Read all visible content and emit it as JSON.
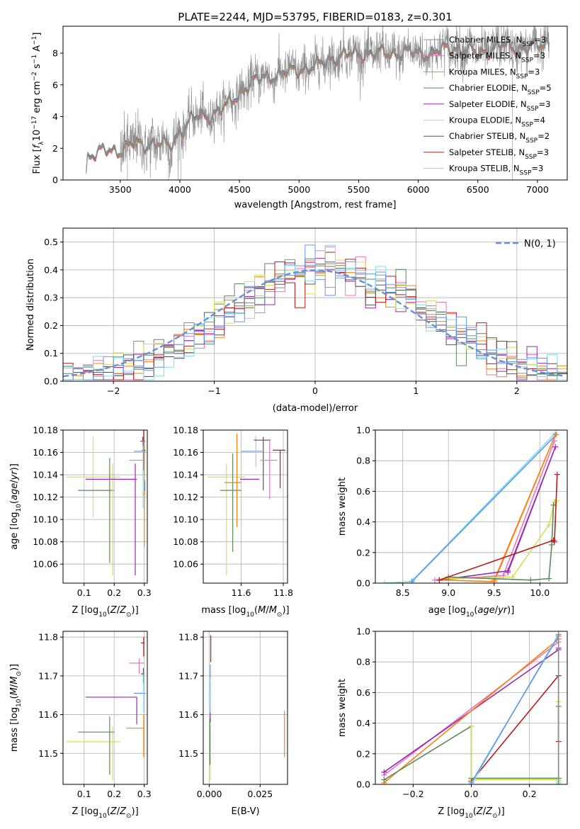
{
  "figure_title": "PLATE=2244, MJD=53795, FIBERID=0183, z=0.301",
  "colors": {
    "chabrier_miles": "#8c8c8c",
    "salpeter_miles": "#e377c2",
    "kroupa_miles": "#ff7f0e",
    "chabrier_elodie": "#5a8a5a",
    "salpeter_elodie": "#9c27b0",
    "kroupa_elodie": "#d4e157",
    "chabrier_stelib": "#555555",
    "salpeter_stelib": "#b71c1c",
    "kroupa_stelib": "#80deea",
    "extra_blue": "#6495ed",
    "normal_curve": "#6b8fd6"
  },
  "chart_data": [
    {
      "id": "spectrum",
      "type": "line",
      "title": "PLATE=2244, MJD=53795, FIBERID=0183, z=0.301",
      "xlabel": "wavelength [Angstrom, rest frame]",
      "ylabel": "Flux [f_λ 10^-17 erg cm^-2 s^-1 A^-1]",
      "xlim": [
        3020,
        7250
      ],
      "ylim": [
        0,
        9.7
      ],
      "xticks": [
        3500,
        4000,
        4500,
        5000,
        5500,
        6000,
        6500,
        7000
      ],
      "yticks": [
        0,
        2,
        4,
        6,
        8
      ],
      "grid": false,
      "legend_position": "top-right",
      "legend": [
        {
          "label": "Chabrier MILES, N",
          "sub": "SSP",
          "suffix": "=3",
          "color": "#8c8c8c"
        },
        {
          "label": "Salpeter MILES, N",
          "sub": "SSP",
          "suffix": "=3",
          "color": "#e377c2"
        },
        {
          "label": "Kroupa MILES, N",
          "sub": "SSP",
          "suffix": "=3",
          "color": "#ff7f0e"
        },
        {
          "label": "Chabrier ELODIE, N",
          "sub": "SSP",
          "suffix": "=5",
          "color": "#5a8a5a"
        },
        {
          "label": "Salpeter ELODIE, N",
          "sub": "SSP",
          "suffix": "=3",
          "color": "#9c27b0"
        },
        {
          "label": "Kroupa ELODIE, N",
          "sub": "SSP",
          "suffix": "=4",
          "color": "#d4e157"
        },
        {
          "label": "Chabrier STELIB, N",
          "sub": "SSP",
          "suffix": "=2",
          "color": "#555555"
        },
        {
          "label": "Salpeter STELIB, N",
          "sub": "SSP",
          "suffix": "=3",
          "color": "#b71c1c"
        },
        {
          "label": "Kroupa STELIB, N",
          "sub": "SSP",
          "suffix": "=3",
          "color": "#80deea"
        }
      ],
      "continuum_knots": [
        [
          3210,
          0
        ],
        [
          3225,
          1.5
        ],
        [
          3300,
          1.75
        ],
        [
          3400,
          1.85
        ],
        [
          3500,
          1.9
        ],
        [
          3600,
          2.3
        ],
        [
          3700,
          2.2
        ],
        [
          3800,
          2.4
        ],
        [
          3920,
          2.1
        ],
        [
          4000,
          3.1
        ],
        [
          4100,
          3.9
        ],
        [
          4250,
          4.1
        ],
        [
          4400,
          4.7
        ],
        [
          4550,
          5.9
        ],
        [
          4700,
          6.5
        ],
        [
          4850,
          6.7
        ],
        [
          5000,
          7.0
        ],
        [
          5150,
          7.2
        ],
        [
          5300,
          7.8
        ],
        [
          5500,
          8.0
        ],
        [
          5700,
          8.0
        ],
        [
          5900,
          8.05
        ],
        [
          6100,
          8.0
        ],
        [
          6300,
          8.4
        ],
        [
          6500,
          8.0
        ],
        [
          6700,
          8.5
        ],
        [
          6900,
          8.3
        ],
        [
          7050,
          8.6
        ],
        [
          7100,
          8.8
        ]
      ]
    },
    {
      "id": "residuals",
      "type": "histogram",
      "xlabel": "(data-model)/error",
      "ylabel": "Normed distribution",
      "xlim": [
        -2.5,
        2.5
      ],
      "ylim": [
        0,
        0.55
      ],
      "xticks": [
        -2,
        -1,
        0,
        1,
        2
      ],
      "yticks": [
        0.0,
        0.1,
        0.2,
        0.3,
        0.4,
        0.5
      ],
      "grid": true,
      "legend_position": "top-right",
      "normal_label": "N(0, 1)",
      "bin_width": 0.1
    },
    {
      "id": "age_vs_Z",
      "type": "errorbar",
      "xlabel": "Z [log10(Z/Z_sun)]",
      "ylabel": "age  [log10(age/yr)]",
      "xlim": [
        0.03,
        0.31
      ],
      "ylim": [
        10.043,
        10.18
      ],
      "xticks": [
        0.1,
        0.2,
        0.3
      ],
      "yticks": [
        10.06,
        10.08,
        10.1,
        10.12,
        10.14,
        10.16,
        10.18
      ],
      "grid": true,
      "points": [
        {
          "x": 0.13,
          "xerr": 0.09,
          "y": 10.138,
          "yerr": 0.036,
          "color": "#d4e157"
        },
        {
          "x": 0.14,
          "xerr": 0.06,
          "y": 10.126,
          "yerr": 0.0,
          "color": "#5a8a5a"
        },
        {
          "x": 0.185,
          "xerr": 0.0,
          "y": 10.108,
          "yerr": 0.047,
          "color": "#5a8a5a"
        },
        {
          "x": 0.195,
          "xerr": 0.0,
          "y": 10.1,
          "yerr": 0.05,
          "color": "#d4e157"
        },
        {
          "x": 0.19,
          "xerr": 0.085,
          "y": 10.136,
          "yerr": 0.0,
          "color": "#9c27b0"
        },
        {
          "x": 0.27,
          "xerr": 0.0,
          "y": 10.1,
          "yerr": 0.05,
          "color": "#9c27b0"
        },
        {
          "x": 0.275,
          "xerr": 0.025,
          "y": 10.153,
          "yerr": 0.0,
          "color": "#e377c2"
        },
        {
          "x": 0.285,
          "xerr": 0.02,
          "y": 10.161,
          "yerr": 0.0,
          "color": "#6495ed"
        },
        {
          "x": 0.295,
          "xerr": 0.008,
          "y": 10.17,
          "yerr": 0.004,
          "color": "#555555"
        },
        {
          "x": 0.298,
          "xerr": 0.006,
          "y": 10.162,
          "yerr": 0.018,
          "color": "#b71c1c"
        },
        {
          "x": 0.296,
          "xerr": 0.004,
          "y": 10.14,
          "yerr": 0.03,
          "color": "#80deea"
        },
        {
          "x": 0.3,
          "xerr": 0.004,
          "y": 10.123,
          "yerr": 0.048,
          "color": "#ff7f0e"
        },
        {
          "x": 0.302,
          "xerr": 0.0,
          "y": 10.13,
          "yerr": 0.005,
          "color": "#8c8c8c"
        }
      ]
    },
    {
      "id": "age_vs_mass",
      "type": "errorbar",
      "xlabel": "mass [log10(M/M_sun)]",
      "ylabel": "",
      "xlim": [
        11.42,
        11.82
      ],
      "ylim": [
        10.043,
        10.18
      ],
      "xticks": [
        11.6,
        11.8
      ],
      "yticks": [
        10.06,
        10.08,
        10.1,
        10.12,
        10.14,
        10.16,
        10.18
      ],
      "grid": true,
      "points": [
        {
          "x": 11.53,
          "xerr": 0.09,
          "y": 10.138,
          "yerr": 0.0,
          "color": "#d4e157"
        },
        {
          "x": 11.53,
          "xerr": 0.0,
          "y": 10.1,
          "yerr": 0.05,
          "color": "#d4e157"
        },
        {
          "x": 11.55,
          "xerr": 0.05,
          "y": 10.126,
          "yerr": 0.0,
          "color": "#5a8a5a"
        },
        {
          "x": 11.56,
          "xerr": 0.0,
          "y": 10.115,
          "yerr": 0.044,
          "color": "#5a8a5a"
        },
        {
          "x": 11.56,
          "xerr": 0.04,
          "y": 10.133,
          "yerr": 0.0,
          "color": "#ff7f0e"
        },
        {
          "x": 11.58,
          "xerr": 0.0,
          "y": 10.135,
          "yerr": 0.042,
          "color": "#ff7f0e"
        },
        {
          "x": 11.64,
          "xerr": 0.045,
          "y": 10.136,
          "yerr": 0.0,
          "color": "#9c27b0"
        },
        {
          "x": 11.65,
          "xerr": 0.05,
          "y": 10.161,
          "yerr": 0.0,
          "color": "#6495ed"
        },
        {
          "x": 11.67,
          "xerr": 0.0,
          "y": 10.161,
          "yerr": 0.014,
          "color": "#80deea"
        },
        {
          "x": 11.7,
          "xerr": 0.04,
          "y": 10.171,
          "yerr": 0.0,
          "color": "#555555"
        },
        {
          "x": 11.705,
          "xerr": 0.0,
          "y": 10.15,
          "yerr": 0.024,
          "color": "#555555"
        },
        {
          "x": 11.73,
          "xerr": 0.04,
          "y": 10.153,
          "yerr": 0.0,
          "color": "#e377c2"
        },
        {
          "x": 11.735,
          "xerr": 0.0,
          "y": 10.145,
          "yerr": 0.027,
          "color": "#e377c2"
        },
        {
          "x": 11.78,
          "xerr": 0.03,
          "y": 10.162,
          "yerr": 0.0,
          "color": "#b71c1c"
        },
        {
          "x": 11.785,
          "xerr": 0.0,
          "y": 10.145,
          "yerr": 0.017,
          "color": "#b71c1c"
        }
      ]
    },
    {
      "id": "mass_weight_vs_age",
      "type": "line",
      "xlabel": "age  [log10(age/yr)]",
      "ylabel": "mass weight",
      "xlim": [
        8.2,
        10.3
      ],
      "ylim": [
        0,
        1.0
      ],
      "xticks": [
        8.5,
        9.0,
        9.5,
        10.0
      ],
      "yticks": [
        0.0,
        0.2,
        0.4,
        0.6,
        0.8,
        1.0
      ],
      "grid": true,
      "series": [
        {
          "color": "#80deea",
          "x": [
            8.3,
            8.6,
            10.17,
            8.61
          ],
          "y": [
            0.0,
            0.01,
            0.98,
            0.02
          ]
        },
        {
          "color": "#6495ed",
          "x": [
            8.6,
            10.18
          ],
          "y": [
            0.01,
            0.97
          ]
        },
        {
          "color": "#ff7f0e",
          "x": [
            8.9,
            9.5,
            10.17,
            9.5
          ],
          "y": [
            0.02,
            0.01,
            0.97,
            0.02
          ]
        },
        {
          "color": "#e377c2",
          "x": [
            8.85,
            9.6,
            10.16,
            9.6
          ],
          "y": [
            0.02,
            0.05,
            0.93,
            0.05
          ]
        },
        {
          "color": "#9c27b0",
          "x": [
            8.9,
            9.65,
            10.17,
            9.65
          ],
          "y": [
            0.02,
            0.08,
            0.89,
            0.07
          ]
        },
        {
          "color": "#d4e157",
          "x": [
            8.95,
            9.7,
            10.1,
            10.16,
            10.17,
            10.18
          ],
          "y": [
            0.03,
            0.04,
            0.38,
            0.53,
            0.53,
            0.54
          ]
        },
        {
          "color": "#5a8a5a",
          "x": [
            9.0,
            9.9,
            10.1,
            10.13,
            10.15
          ],
          "y": [
            0.04,
            0.02,
            0.03,
            0.25,
            0.51
          ]
        },
        {
          "color": "#b71c1c",
          "x": [
            8.9,
            10.15,
            10.16,
            10.19
          ],
          "y": [
            0.02,
            0.28,
            0.27,
            0.71
          ]
        }
      ]
    },
    {
      "id": "mass_vs_Z",
      "type": "errorbar",
      "xlabel": "Z [log10(Z/Z_sun)]",
      "ylabel": "mass [log10(M/M_sun)]",
      "xlim": [
        0.03,
        0.31
      ],
      "ylim": [
        11.42,
        11.815
      ],
      "xticks": [
        0.1,
        0.2,
        0.3
      ],
      "yticks": [
        11.5,
        11.6,
        11.7,
        11.8
      ],
      "grid": true,
      "points": [
        {
          "x": 0.13,
          "xerr": 0.09,
          "y": 11.53,
          "yerr": 0.0,
          "color": "#d4e157"
        },
        {
          "x": 0.195,
          "xerr": 0.0,
          "y": 11.5,
          "yerr": 0.07,
          "color": "#d4e157"
        },
        {
          "x": 0.14,
          "xerr": 0.06,
          "y": 11.555,
          "yerr": 0.0,
          "color": "#5a8a5a"
        },
        {
          "x": 0.185,
          "xerr": 0.0,
          "y": 11.52,
          "yerr": 0.075,
          "color": "#5a8a5a"
        },
        {
          "x": 0.19,
          "xerr": 0.085,
          "y": 11.645,
          "yerr": 0.0,
          "color": "#9c27b0"
        },
        {
          "x": 0.275,
          "xerr": 0.0,
          "y": 11.61,
          "yerr": 0.035,
          "color": "#9c27b0"
        },
        {
          "x": 0.27,
          "xerr": 0.03,
          "y": 11.565,
          "yerr": 0.0,
          "color": "#ff7f0e"
        },
        {
          "x": 0.298,
          "xerr": 0.0,
          "y": 11.545,
          "yerr": 0.055,
          "color": "#ff7f0e"
        },
        {
          "x": 0.275,
          "xerr": 0.025,
          "y": 11.733,
          "yerr": 0.0,
          "color": "#e377c2"
        },
        {
          "x": 0.283,
          "xerr": 0.0,
          "y": 11.725,
          "yerr": 0.02,
          "color": "#e377c2"
        },
        {
          "x": 0.285,
          "xerr": 0.02,
          "y": 11.655,
          "yerr": 0.0,
          "color": "#6495ed"
        },
        {
          "x": 0.295,
          "xerr": 0.006,
          "y": 11.705,
          "yerr": 0.0,
          "color": "#555555"
        },
        {
          "x": 0.297,
          "xerr": 0.0,
          "y": 11.7,
          "yerr": 0.02,
          "color": "#555555"
        },
        {
          "x": 0.295,
          "xerr": 0.006,
          "y": 11.785,
          "yerr": 0.0,
          "color": "#b71c1c"
        },
        {
          "x": 0.298,
          "xerr": 0.0,
          "y": 11.775,
          "yerr": 0.025,
          "color": "#b71c1c"
        },
        {
          "x": 0.298,
          "xerr": 0.0,
          "y": 11.655,
          "yerr": 0.05,
          "color": "#80deea"
        }
      ]
    },
    {
      "id": "mass_vs_EBV",
      "type": "errorbar",
      "xlabel": "E(B-V)",
      "ylabel": "",
      "xlim": [
        -0.003,
        0.0385
      ],
      "ylim": [
        11.42,
        11.815
      ],
      "xticks": [
        0.0,
        0.025
      ],
      "yticks": [
        11.5,
        11.6,
        11.7,
        11.8
      ],
      "grid": true,
      "points": [
        {
          "x": 0.0005,
          "xerr": 0.0,
          "y": 11.5,
          "yerr": 0.07,
          "color": "#d4e157"
        },
        {
          "x": 0.0005,
          "xerr": 0.0,
          "y": 11.63,
          "yerr": 0.05,
          "color": "#9c27b0"
        },
        {
          "x": 0.0005,
          "xerr": 0.0,
          "y": 11.7,
          "yerr": 0.03,
          "color": "#6495ed"
        },
        {
          "x": 0.0005,
          "xerr": 0.0,
          "y": 11.65,
          "yerr": 0.045,
          "color": "#80deea"
        },
        {
          "x": 0.0007,
          "xerr": 0.0,
          "y": 11.77,
          "yerr": 0.035,
          "color": "#b71c1c"
        },
        {
          "x": 0.0003,
          "xerr": 0.0,
          "y": 11.53,
          "yerr": 0.06,
          "color": "#5a8a5a"
        },
        {
          "x": 0.037,
          "xerr": 0.0,
          "y": 11.55,
          "yerr": 0.06,
          "color": "#ff7f0e"
        }
      ]
    },
    {
      "id": "mass_weight_vs_Z",
      "type": "line",
      "xlabel": "Z [log10(Z/Z_sun)]",
      "ylabel": "mass weight",
      "xlim": [
        -0.33,
        0.33
      ],
      "ylim": [
        0,
        1.0
      ],
      "xticks": [
        -0.2,
        0.0,
        0.2
      ],
      "yticks": [
        0.0,
        0.2,
        0.4,
        0.6,
        0.8,
        1.0
      ],
      "grid": true,
      "series": [
        {
          "color": "#e377c2",
          "x": [
            -0.3,
            0.3,
            0.3
          ],
          "y": [
            0.06,
            0.93,
            0.95
          ]
        },
        {
          "color": "#9c27b0",
          "x": [
            -0.3,
            0.3,
            0.3
          ],
          "y": [
            0.08,
            0.88,
            0.89
          ]
        },
        {
          "color": "#ff7f0e",
          "x": [
            -0.3,
            0.3,
            0.3
          ],
          "y": [
            0.01,
            0.95,
            0.97
          ]
        },
        {
          "color": "#5a8a5a",
          "x": [
            -0.3,
            0.0,
            0.0,
            0.3,
            0.3
          ],
          "y": [
            0.03,
            0.38,
            0.04,
            0.04,
            0.51
          ]
        },
        {
          "color": "#d4e157",
          "x": [
            0.0,
            0.0,
            0.3,
            0.3
          ],
          "y": [
            0.38,
            0.03,
            0.03,
            0.54
          ]
        },
        {
          "color": "#b71c1c",
          "x": [
            0.0,
            0.3,
            0.3
          ],
          "y": [
            0.02,
            0.71,
            0.28
          ]
        },
        {
          "color": "#80deea",
          "x": [
            0.0,
            0.3,
            0.3,
            0.3
          ],
          "y": [
            0.0,
            0.98,
            0.01,
            0.02
          ]
        },
        {
          "color": "#6495ed",
          "x": [
            0.0,
            0.3
          ],
          "y": [
            0.01,
            0.97
          ]
        },
        {
          "color": "#8c8c8c",
          "x": [
            0.3,
            0.3
          ],
          "y": [
            0.0,
            0.98
          ]
        }
      ]
    }
  ]
}
